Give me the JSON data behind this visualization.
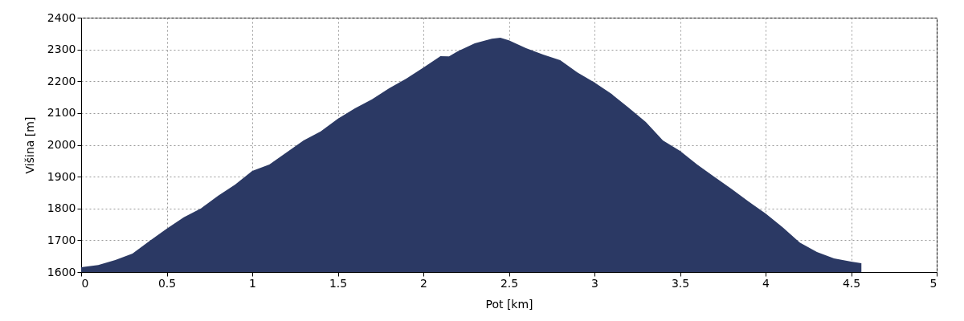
{
  "chart_data": {
    "type": "area",
    "xlabel": "Pot [km]",
    "ylabel": "Višina [m]",
    "x": [
      0,
      0.1,
      0.2,
      0.3,
      0.4,
      0.5,
      0.6,
      0.7,
      0.8,
      0.9,
      1.0,
      1.1,
      1.2,
      1.3,
      1.4,
      1.5,
      1.6,
      1.7,
      1.8,
      1.9,
      2.0,
      2.1,
      2.15,
      2.2,
      2.3,
      2.4,
      2.45,
      2.5,
      2.6,
      2.7,
      2.8,
      2.9,
      3.0,
      3.1,
      3.2,
      3.3,
      3.4,
      3.5,
      3.6,
      3.7,
      3.8,
      3.9,
      4.0,
      4.1,
      4.2,
      4.3,
      4.4,
      4.5,
      4.56
    ],
    "series": [
      {
        "color": "#2b3964",
        "values": [
          1615,
          1622,
          1638,
          1658,
          1698,
          1736,
          1772,
          1800,
          1840,
          1875,
          1918,
          1938,
          1976,
          2014,
          2042,
          2082,
          2115,
          2143,
          2178,
          2208,
          2243,
          2279,
          2278,
          2294,
          2319,
          2334,
          2337,
          2329,
          2304,
          2284,
          2266,
          2228,
          2196,
          2160,
          2117,
          2072,
          2014,
          1981,
          1938,
          1900,
          1862,
          1822,
          1784,
          1741,
          1693,
          1663,
          1643,
          1633,
          1628
        ]
      }
    ],
    "xlim": [
      0,
      5
    ],
    "xticks": [
      0,
      0.5,
      1,
      1.5,
      2,
      2.5,
      3,
      3.5,
      4,
      4.5,
      5
    ],
    "ylim": [
      1600,
      2400
    ],
    "yticks": [
      1600,
      1700,
      1800,
      1900,
      2000,
      2100,
      2200,
      2300,
      2400
    ],
    "grid": true
  }
}
